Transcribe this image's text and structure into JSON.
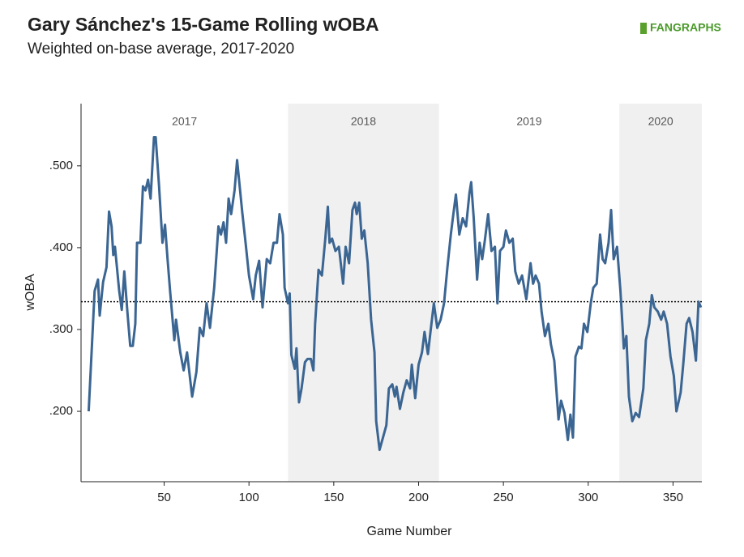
{
  "chart_data": {
    "type": "line",
    "title": "Gary Sánchez's 15-Game Rolling wOBA",
    "subtitle": "Weighted on-base average, 2017-2020",
    "logo": "FANGRAPHS",
    "x_label": "Game Number",
    "y_label": "wOBA",
    "xlim": [
      1,
      367
    ],
    "ylim": [
      0.114,
      0.576
    ],
    "xticks": [
      50,
      100,
      150,
      200,
      250,
      300,
      350
    ],
    "yticks": [
      {
        "value": 0.2,
        "label": ".200"
      },
      {
        "value": 0.3,
        "label": ".300"
      },
      {
        "value": 0.4,
        "label": ".400"
      },
      {
        "value": 0.5,
        "label": ".500"
      }
    ],
    "reference_line": 0.334,
    "seasons": [
      {
        "name": "2017",
        "start": 1,
        "end": 123,
        "shaded": false
      },
      {
        "name": "2018",
        "start": 123,
        "end": 212,
        "shaded": true
      },
      {
        "name": "2019",
        "start": 212,
        "end": 318.4,
        "shaded": false
      },
      {
        "name": "2020",
        "start": 318.4,
        "end": 367,
        "shaded": true
      }
    ],
    "series": [
      {
        "name": "wOBA",
        "color": "#3b6592",
        "x": [
          5.5,
          9,
          11,
          12,
          14,
          16,
          17.5,
          19,
          20,
          21,
          23.5,
          25,
          26.5,
          28.5,
          30,
          31.5,
          33,
          34,
          36,
          37.5,
          39,
          40.5,
          42,
          44,
          45,
          47,
          49,
          50.5,
          52,
          53.5,
          56,
          57,
          59.5,
          61.5,
          63.5,
          66.5,
          69,
          71,
          73,
          75,
          77,
          79.5,
          82,
          83.5,
          85,
          86.5,
          88,
          89.5,
          91.5,
          93,
          95,
          96,
          98,
          100,
          102.5,
          104,
          106,
          108,
          110.5,
          112.5,
          114.5,
          116.5,
          118,
          120,
          121,
          123,
          124,
          125,
          127,
          128,
          129.5,
          131,
          133,
          134.5,
          136.5,
          138,
          139,
          141,
          143,
          145,
          146.5,
          147.5,
          149,
          151,
          153,
          155.5,
          157,
          159,
          161,
          162.5,
          163.5,
          165,
          166.5,
          168,
          170,
          172,
          174,
          175,
          177,
          179,
          181,
          182.5,
          184.5,
          186,
          187,
          189,
          191,
          193,
          195,
          196,
          198,
          200,
          202,
          203.5,
          205.5,
          207,
          209,
          211,
          213,
          215,
          217,
          219,
          220.5,
          222,
          224,
          226,
          228,
          230,
          231,
          232.5,
          234.5,
          236,
          237.5,
          239,
          241,
          243,
          245,
          246.5,
          248,
          250,
          251.5,
          253.5,
          255.5,
          257,
          259,
          261,
          263.5,
          266,
          267.5,
          269,
          271,
          272.5,
          274.5,
          276.5,
          278,
          280,
          282.5,
          284,
          286,
          288,
          289.5,
          291,
          292.5,
          294.5,
          296,
          297.5,
          299.5,
          301.5,
          303,
          305,
          307,
          308.5,
          310,
          312,
          313.5,
          315,
          317,
          319,
          321,
          322.5,
          324,
          326,
          328,
          330,
          332.5,
          334,
          336,
          337.5,
          339,
          341,
          343,
          344.5,
          346.5,
          348.5,
          350.5,
          352,
          354.5,
          356,
          358,
          359.5,
          361.5,
          363.5,
          365,
          366.5
        ],
        "values": [
          0.2,
          0.347,
          0.361,
          0.317,
          0.358,
          0.376,
          0.444,
          0.426,
          0.391,
          0.401,
          0.347,
          0.324,
          0.371,
          0.317,
          0.28,
          0.28,
          0.307,
          0.406,
          0.406,
          0.475,
          0.47,
          0.483,
          0.46,
          0.535,
          0.535,
          0.475,
          0.406,
          0.428,
          0.386,
          0.347,
          0.287,
          0.312,
          0.272,
          0.25,
          0.272,
          0.218,
          0.248,
          0.302,
          0.292,
          0.332,
          0.302,
          0.351,
          0.426,
          0.416,
          0.431,
          0.406,
          0.46,
          0.441,
          0.47,
          0.507,
          0.465,
          0.444,
          0.406,
          0.366,
          0.337,
          0.366,
          0.384,
          0.327,
          0.386,
          0.381,
          0.406,
          0.406,
          0.441,
          0.416,
          0.351,
          0.332,
          0.344,
          0.269,
          0.252,
          0.277,
          0.211,
          0.228,
          0.26,
          0.264,
          0.264,
          0.25,
          0.307,
          0.373,
          0.366,
          0.411,
          0.45,
          0.406,
          0.411,
          0.396,
          0.401,
          0.356,
          0.401,
          0.381,
          0.446,
          0.455,
          0.441,
          0.455,
          0.411,
          0.421,
          0.381,
          0.312,
          0.272,
          0.188,
          0.153,
          0.168,
          0.183,
          0.228,
          0.233,
          0.218,
          0.23,
          0.203,
          0.223,
          0.238,
          0.228,
          0.257,
          0.216,
          0.257,
          0.272,
          0.297,
          0.27,
          0.297,
          0.332,
          0.302,
          0.312,
          0.332,
          0.376,
          0.416,
          0.441,
          0.465,
          0.416,
          0.436,
          0.426,
          0.467,
          0.48,
          0.436,
          0.361,
          0.406,
          0.386,
          0.408,
          0.441,
          0.396,
          0.401,
          0.332,
          0.396,
          0.401,
          0.421,
          0.406,
          0.411,
          0.371,
          0.356,
          0.366,
          0.337,
          0.381,
          0.356,
          0.366,
          0.356,
          0.322,
          0.292,
          0.307,
          0.282,
          0.262,
          0.19,
          0.213,
          0.198,
          0.165,
          0.196,
          0.168,
          0.267,
          0.279,
          0.277,
          0.307,
          0.297,
          0.332,
          0.351,
          0.356,
          0.416,
          0.386,
          0.381,
          0.406,
          0.446,
          0.386,
          0.401,
          0.347,
          0.277,
          0.292,
          0.218,
          0.188,
          0.198,
          0.193,
          0.228,
          0.287,
          0.307,
          0.342,
          0.327,
          0.322,
          0.312,
          0.322,
          0.307,
          0.267,
          0.243,
          0.2,
          0.223,
          0.257,
          0.307,
          0.314,
          0.297,
          0.262,
          0.334,
          0.327
        ]
      }
    ]
  }
}
